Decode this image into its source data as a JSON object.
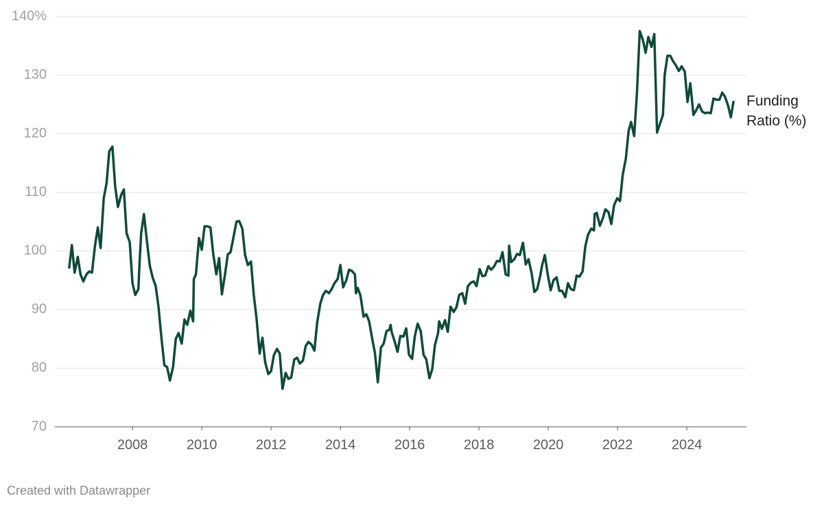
{
  "chart_data": {
    "type": "line",
    "credit": "Created with Datawrapper",
    "xlim": [
      2005.76,
      2025.72
    ],
    "xticks": [
      2008,
      2010,
      2012,
      2014,
      2016,
      2018,
      2020,
      2022,
      2024
    ],
    "ylim": [
      70,
      140
    ],
    "yticks": [
      70,
      80,
      90,
      100,
      110,
      120,
      130,
      {
        "value": 140,
        "label": "140%"
      }
    ],
    "grid": true,
    "x": [
      2006.17,
      2006.25,
      2006.33,
      2006.42,
      2006.5,
      2006.58,
      2006.67,
      2006.75,
      2006.83,
      2006.92,
      2007.0,
      2007.08,
      2007.17,
      2007.25,
      2007.33,
      2007.42,
      2007.5,
      2007.58,
      2007.67,
      2007.75,
      2007.83,
      2007.92,
      2008.0,
      2008.08,
      2008.17,
      2008.2,
      2008.25,
      2008.33,
      2008.42,
      2008.5,
      2008.58,
      2008.67,
      2008.75,
      2008.83,
      2008.92,
      2009.0,
      2009.08,
      2009.17,
      2009.25,
      2009.33,
      2009.42,
      2009.5,
      2009.58,
      2009.67,
      2009.75,
      2009.77,
      2009.83,
      2009.92,
      2010.0,
      2010.08,
      2010.17,
      2010.25,
      2010.33,
      2010.42,
      2010.5,
      2010.58,
      2010.67,
      2010.75,
      2010.83,
      2010.92,
      2011.0,
      2011.08,
      2011.17,
      2011.25,
      2011.33,
      2011.42,
      2011.5,
      2011.58,
      2011.67,
      2011.75,
      2011.83,
      2011.92,
      2012.0,
      2012.08,
      2012.17,
      2012.25,
      2012.33,
      2012.42,
      2012.5,
      2012.58,
      2012.67,
      2012.75,
      2012.83,
      2012.92,
      2013.0,
      2013.08,
      2013.17,
      2013.25,
      2013.33,
      2013.42,
      2013.5,
      2013.58,
      2013.67,
      2013.75,
      2013.83,
      2013.92,
      2014.0,
      2014.08,
      2014.17,
      2014.25,
      2014.33,
      2014.42,
      2014.45,
      2014.5,
      2014.58,
      2014.67,
      2014.75,
      2014.83,
      2014.92,
      2015.0,
      2015.08,
      2015.17,
      2015.25,
      2015.33,
      2015.42,
      2015.45,
      2015.48,
      2015.57,
      2015.65,
      2015.73,
      2015.82,
      2015.9,
      2015.98,
      2016.07,
      2016.15,
      2016.23,
      2016.32,
      2016.4,
      2016.48,
      2016.57,
      2016.65,
      2016.73,
      2016.82,
      2016.85,
      2016.93,
      2017.02,
      2017.1,
      2017.18,
      2017.27,
      2017.35,
      2017.43,
      2017.52,
      2017.6,
      2017.68,
      2017.77,
      2017.85,
      2017.93,
      2018.02,
      2018.1,
      2018.18,
      2018.27,
      2018.35,
      2018.43,
      2018.52,
      2018.6,
      2018.68,
      2018.77,
      2018.85,
      2018.87,
      2018.93,
      2019.02,
      2019.1,
      2019.18,
      2019.27,
      2019.35,
      2019.43,
      2019.52,
      2019.6,
      2019.68,
      2019.77,
      2019.82,
      2019.9,
      2019.99,
      2020.07,
      2020.15,
      2020.24,
      2020.32,
      2020.4,
      2020.49,
      2020.57,
      2020.65,
      2020.74,
      2020.82,
      2020.9,
      2020.99,
      2021.07,
      2021.15,
      2021.24,
      2021.32,
      2021.34,
      2021.4,
      2021.49,
      2021.57,
      2021.65,
      2021.74,
      2021.82,
      2021.9,
      2021.99,
      2022.07,
      2022.15,
      2022.24,
      2022.32,
      2022.39,
      2022.48,
      2022.56,
      2022.64,
      2022.73,
      2022.81,
      2022.89,
      2022.98,
      2023.06,
      2023.14,
      2023.23,
      2023.31,
      2023.36,
      2023.44,
      2023.52,
      2023.6,
      2023.69,
      2023.77,
      2023.85,
      2023.94,
      2024.02,
      2024.1,
      2024.19,
      2024.27,
      2024.35,
      2024.44,
      2024.52,
      2024.6,
      2024.69,
      2024.77,
      2024.85,
      2024.94,
      2025.02,
      2025.1,
      2025.19,
      2025.27,
      2025.35
    ],
    "series": [
      {
        "name": "Funding Ratio (%)",
        "color": "#0f4a38",
        "values": [
          97,
          101,
          96.3,
          99,
          96,
          94.8,
          96,
          96.5,
          96.3,
          101,
          104,
          100.5,
          109,
          111.5,
          117,
          117.8,
          111,
          107.5,
          109.5,
          110.5,
          103,
          101.5,
          94.5,
          92.5,
          93.5,
          97.5,
          103,
          106.3,
          101.5,
          97.5,
          95.5,
          94,
          90.5,
          85.5,
          80.5,
          80.2,
          77.9,
          80.2,
          85,
          86,
          84.2,
          88.3,
          87.4,
          89.8,
          88,
          95.2,
          96,
          102.2,
          100.2,
          104.2,
          104.2,
          104,
          99.5,
          96,
          98.8,
          92.6,
          96,
          99.4,
          99.8,
          102.5,
          105,
          105.1,
          103.8,
          99.3,
          97.6,
          98.2,
          92.5,
          88.5,
          82.5,
          85.2,
          81,
          79,
          79.5,
          82.2,
          83.3,
          82.5,
          76.5,
          79.2,
          78.2,
          78.4,
          81.5,
          81.8,
          80.8,
          81.3,
          83.8,
          84.5,
          84,
          83,
          87.8,
          91,
          92.5,
          93.2,
          92.8,
          93.5,
          94.5,
          95.2,
          97.6,
          93.8,
          95,
          96.8,
          96.6,
          96,
          92.8,
          93.7,
          92.4,
          88.8,
          89.2,
          88,
          85,
          82.5,
          77.6,
          83.5,
          84.2,
          86.3,
          86.6,
          87.4,
          86.2,
          84.5,
          82.8,
          85.5,
          85.4,
          86.8,
          82.3,
          81.6,
          85.5,
          87.6,
          86.3,
          82.3,
          81.5,
          78.3,
          79.8,
          84,
          86,
          88,
          86.7,
          88.2,
          86.2,
          90.5,
          89.6,
          90.4,
          92.5,
          92.8,
          91,
          94,
          94.6,
          94.8,
          94,
          96.9,
          95.7,
          95.8,
          97.4,
          96.8,
          97.3,
          98.3,
          98.2,
          99.8,
          96,
          95.8,
          100.9,
          98.1,
          98.6,
          99.5,
          99.3,
          101.4,
          97.7,
          98.6,
          96.2,
          93,
          93.5,
          95.8,
          97.5,
          99.3,
          95.8,
          93.3,
          95,
          95.5,
          93.2,
          93.2,
          92.1,
          94.5,
          93.5,
          93.3,
          95.8,
          95.6,
          96.5,
          100.8,
          102.8,
          103.8,
          103.5,
          106.3,
          106.5,
          104.3,
          105.5,
          107.1,
          106.6,
          104.6,
          107.8,
          109,
          108.5,
          113,
          115.8,
          120.5,
          122,
          119.6,
          127,
          137.5,
          136,
          133.8,
          136.5,
          134.8,
          137,
          120.2,
          121.8,
          123.2,
          130,
          133.3,
          133.3,
          132.4,
          131.6,
          130.7,
          131.5,
          130.6,
          125.4,
          128.6,
          123.2,
          124,
          125,
          123.8,
          123.5,
          123.6,
          123.5,
          126,
          125.8,
          125.8,
          127,
          126.3,
          124.8,
          122.8,
          125.6
        ]
      }
    ]
  }
}
